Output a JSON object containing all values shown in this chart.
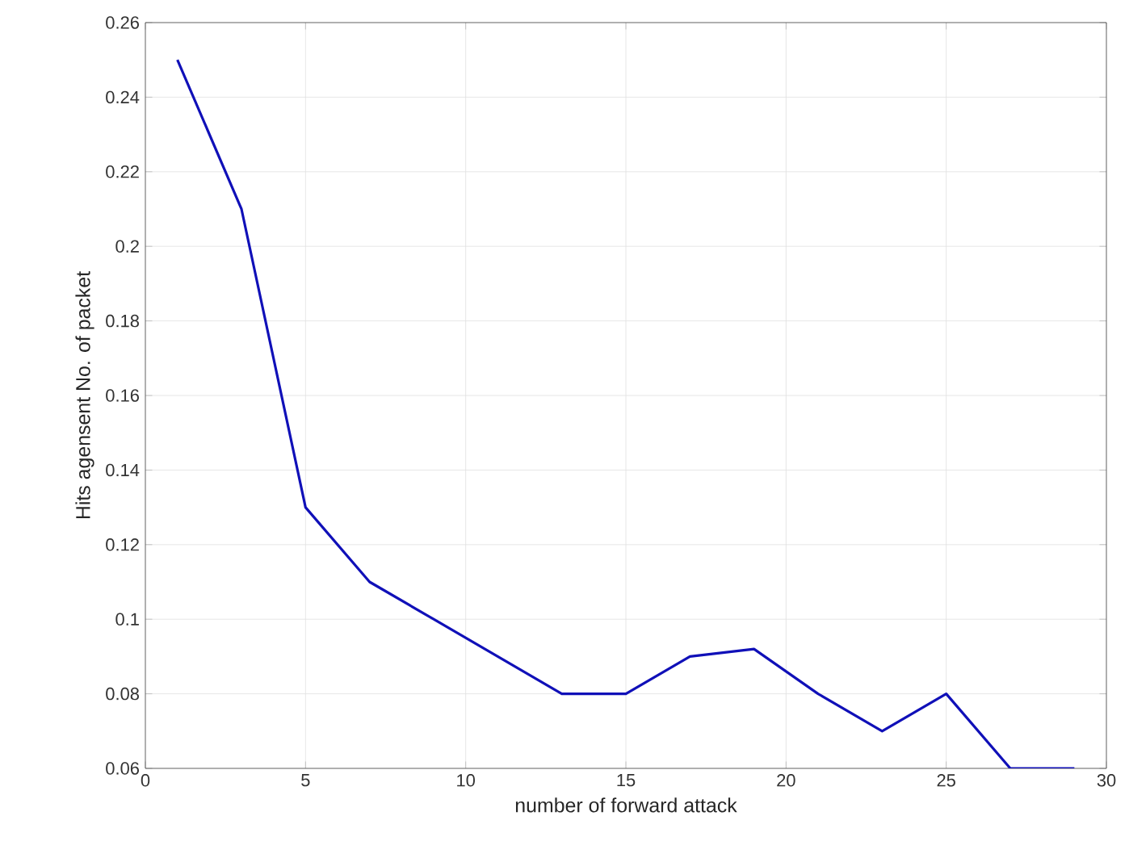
{
  "chart_data": {
    "type": "line",
    "xlabel": "number of forward attack",
    "ylabel": "Hits agensent No. of packet",
    "x": [
      1,
      3,
      5,
      7,
      9,
      11,
      13,
      15,
      17,
      19,
      21,
      23,
      25,
      27,
      29
    ],
    "series": [
      {
        "color": "#1010b8",
        "values": [
          0.25,
          0.21,
          0.13,
          0.11,
          0.1,
          0.09,
          0.08,
          0.08,
          0.09,
          0.092,
          0.08,
          0.07,
          0.08,
          0.06,
          0.06
        ]
      }
    ],
    "xlim": [
      0,
      30
    ],
    "ylim": [
      0.06,
      0.26
    ],
    "xticks": [
      0,
      5,
      10,
      15,
      20,
      25,
      30
    ],
    "yticks": [
      0.06,
      0.08,
      0.1,
      0.12,
      0.14,
      0.16,
      0.18,
      0.2,
      0.22,
      0.24,
      0.26
    ],
    "grid": true,
    "marker": "none",
    "line_style": "solid"
  }
}
